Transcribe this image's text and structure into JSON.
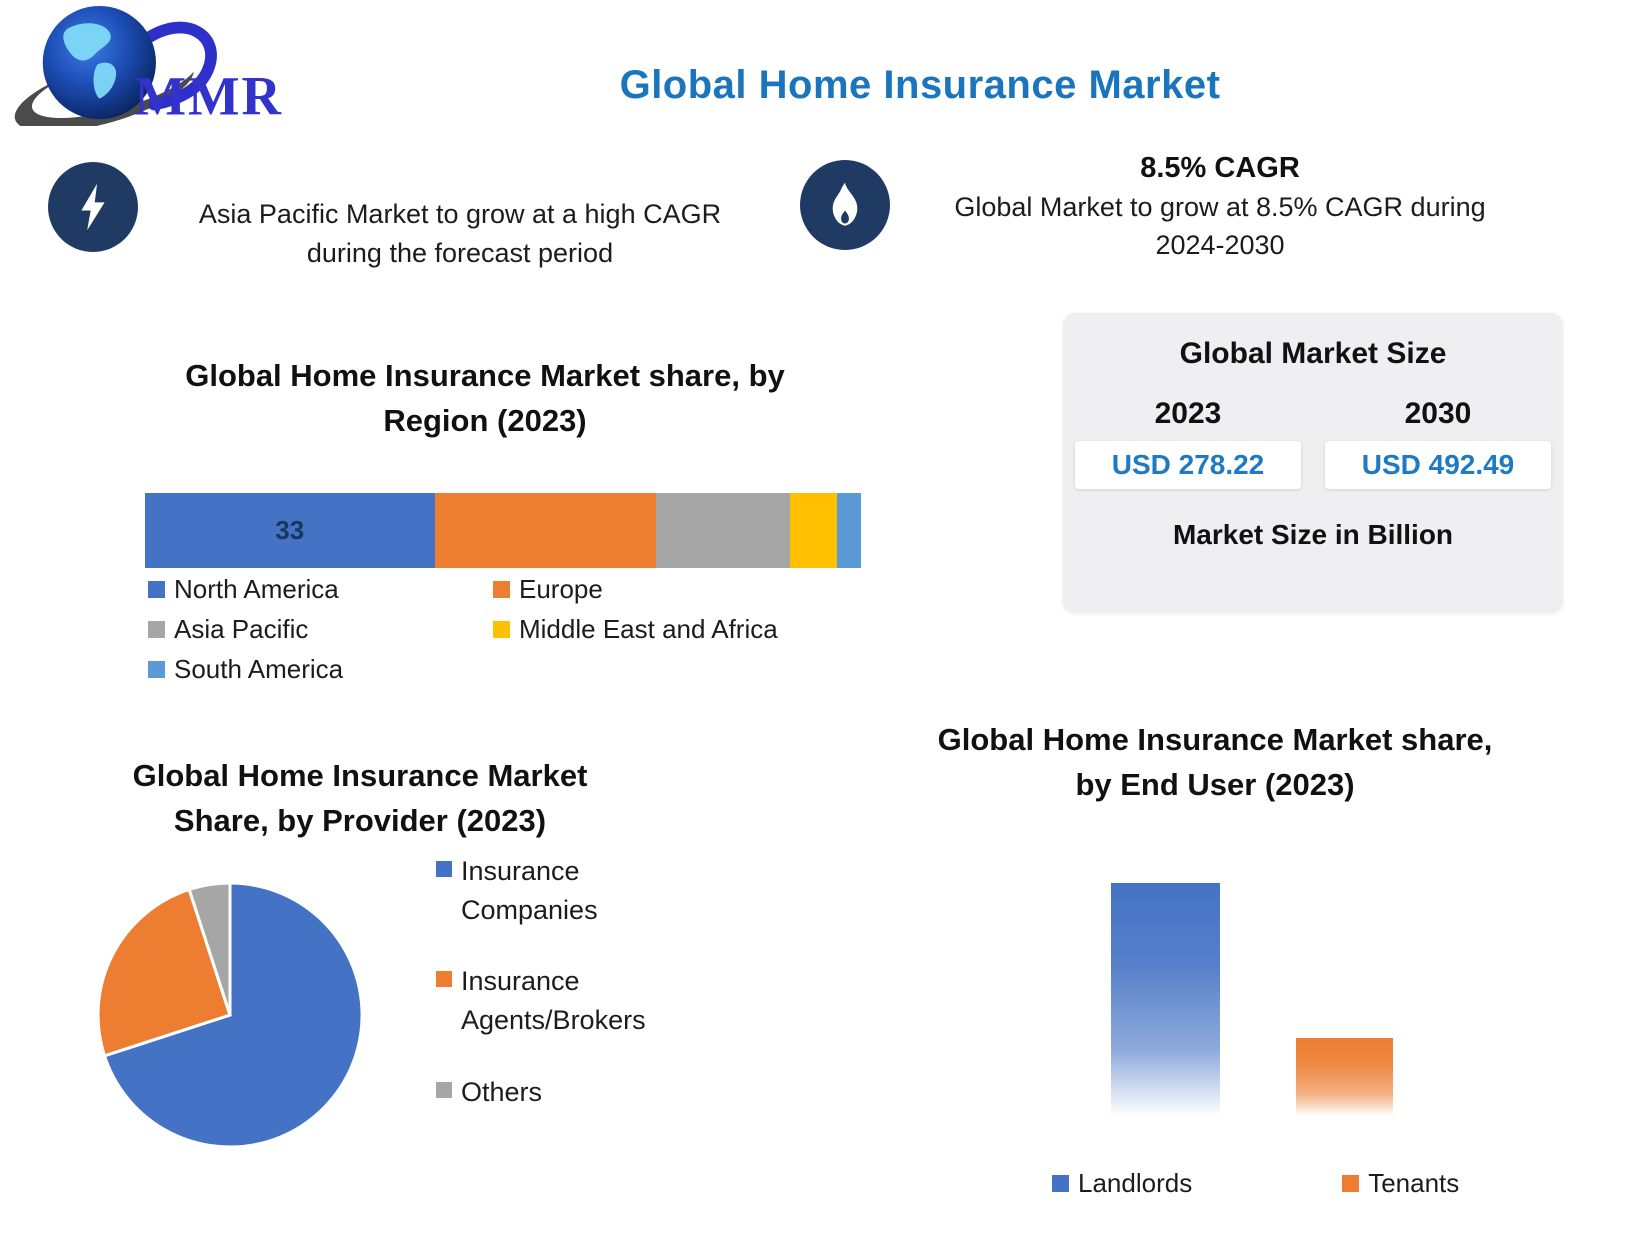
{
  "header": {
    "logo_text": "MMR",
    "title": "Global Home Insurance Market",
    "title_color": "#1b75bc"
  },
  "callouts": {
    "left": {
      "icon": "lightning-bolt",
      "icon_bg": "#1f3a63",
      "text": "Asia Pacific Market to grow at a high CAGR during the forecast period"
    },
    "right": {
      "icon": "flame",
      "icon_bg": "#1f3a63",
      "headline": "8.5% CAGR",
      "text": "Global Market to grow at 8.5% CAGR during 2024-2030"
    }
  },
  "market_size_box": {
    "title": "Global Market Size",
    "columns": [
      {
        "year": "2023",
        "value": "USD 278.22"
      },
      {
        "year": "2030",
        "value": "USD 492.49"
      }
    ],
    "footnote": "Market Size in Billion",
    "value_color": "#1e7ac4",
    "box_bg": "#efeff1"
  },
  "chart_data": [
    {
      "id": "region-share",
      "type": "bar",
      "subtype": "stacked-horizontal",
      "title": "Global Home Insurance Market share, by Region (2023)",
      "series": [
        {
          "name": "North America",
          "value": 33,
          "color": "#4472c4",
          "data_label": "33"
        },
        {
          "name": "Europe",
          "value": 28,
          "color": "#ed7d31",
          "data_label": ""
        },
        {
          "name": "Asia Pacific",
          "value": 17,
          "color": "#a6a6a6",
          "data_label": ""
        },
        {
          "name": "Middle East and Africa",
          "value": 6,
          "color": "#ffc000",
          "data_label": ""
        },
        {
          "name": "South America",
          "value": 3,
          "color": "#5b9bd5",
          "data_label": ""
        }
      ],
      "legend_layout": "two-column-bottom"
    },
    {
      "id": "provider-share",
      "type": "pie",
      "title": "Global Home Insurance Market Share, by Provider (2023)",
      "start_angle_deg": 0,
      "slices": [
        {
          "name": "Insurance Companies",
          "value": 70,
          "color": "#4472c4"
        },
        {
          "name": "Insurance Agents/Brokers",
          "value": 25,
          "color": "#ed7d31"
        },
        {
          "name": "Others",
          "value": 5,
          "color": "#a6a6a6"
        }
      ],
      "legend_position": "right"
    },
    {
      "id": "end-user-share",
      "type": "bar",
      "subtype": "vertical-gradient-fade",
      "title": "Global Home Insurance Market share, by End User (2023)",
      "categories": [
        "Landlords",
        "Tenants"
      ],
      "values": [
        75,
        25
      ],
      "colors": [
        "#4472c4",
        "#ed7d31"
      ],
      "legend_position": "bottom"
    }
  ]
}
